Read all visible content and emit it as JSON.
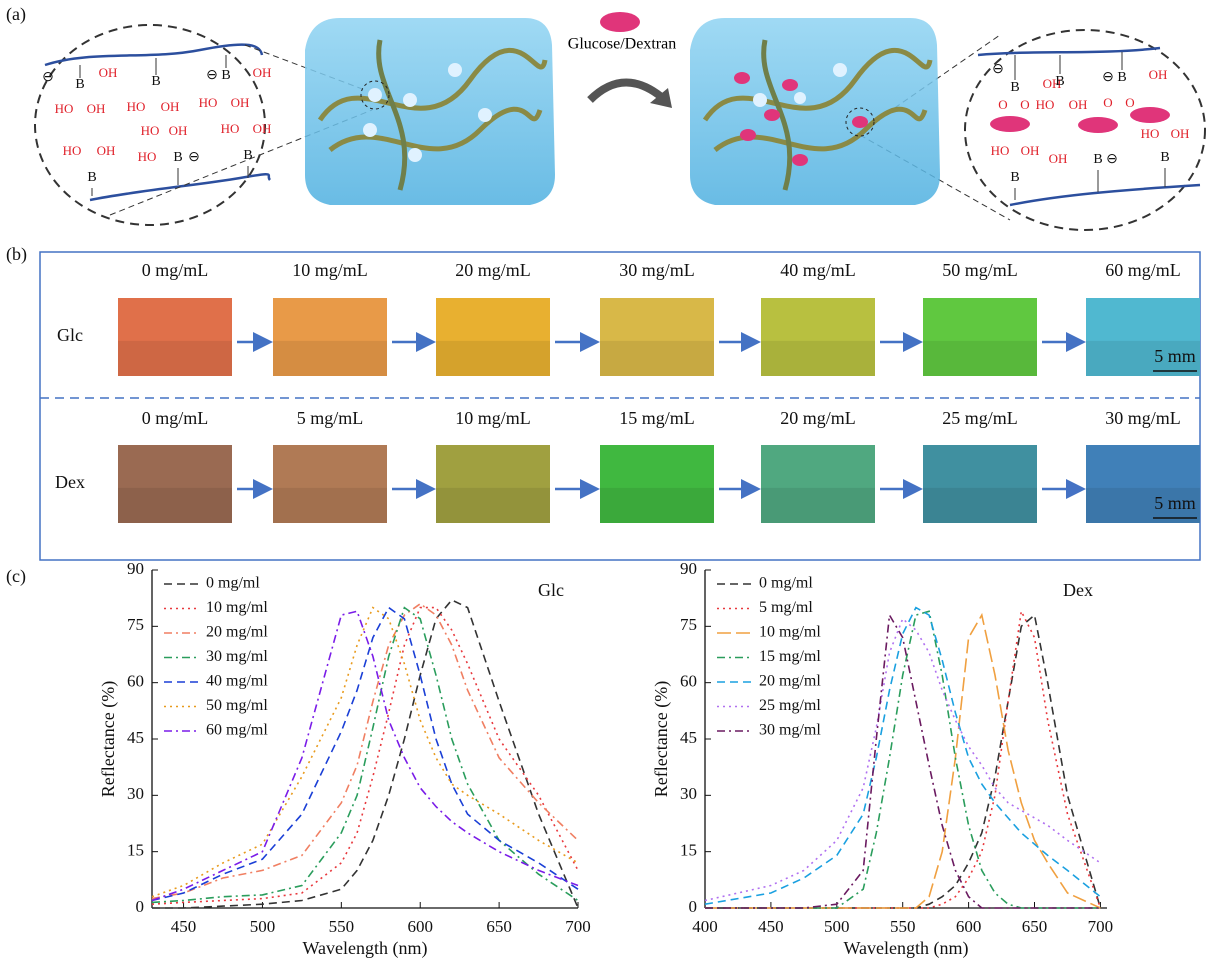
{
  "panel_labels": [
    "(a)",
    "(b)",
    "(c)"
  ],
  "schematic": {
    "analyte": "Glucose/Dextran",
    "left_labels": [
      "⊖",
      "B",
      "OH",
      "HO",
      "OH",
      "B",
      "HO",
      "OH",
      "⊖",
      "B",
      "OH",
      "HO",
      "OH",
      "HO",
      "OH",
      "B",
      "HO",
      "OH",
      "HO",
      "B",
      "⊖",
      "HO",
      "OH",
      "B"
    ],
    "right_labels": [
      "B",
      "OH",
      "O",
      "O",
      "⊖",
      "B",
      "HO",
      "OH",
      "⊖",
      "B",
      "OH",
      "O",
      "O",
      "HO",
      "OH",
      "B",
      "OH",
      "B",
      "⊖",
      "HO",
      "OH",
      "B"
    ]
  },
  "photos": {
    "rows": [
      {
        "name": "Glc",
        "labels": [
          "0 mg/mL",
          "10 mg/mL",
          "20 mg/mL",
          "30 mg/mL",
          "40 mg/mL",
          "50 mg/mL",
          "60 mg/mL"
        ],
        "scale_bar": "5 mm"
      },
      {
        "name": "Dex",
        "labels": [
          "0 mg/mL",
          "5 mg/mL",
          "10 mg/mL",
          "15 mg/mL",
          "20 mg/mL",
          "25 mg/mL",
          "30 mg/mL"
        ],
        "scale_bar": "5 mm"
      }
    ]
  },
  "chart_data": [
    {
      "type": "line",
      "annotation": "Glc",
      "x_label": "Wavelength (nm)",
      "y_label": "Reflectance (%)",
      "xlim": [
        430,
        700
      ],
      "ylim": [
        0,
        90
      ],
      "xticks": [
        450,
        500,
        550,
        600,
        650,
        700
      ],
      "yticks": [
        0,
        15,
        30,
        45,
        60,
        75,
        90
      ],
      "legend": "upper left",
      "grid": false,
      "x": [
        430,
        450,
        475,
        500,
        525,
        550,
        560,
        570,
        580,
        590,
        600,
        610,
        620,
        630,
        650,
        675,
        700
      ],
      "series": [
        {
          "name": "0 mg/ml",
          "color": "#333333",
          "linestyle": "dashed",
          "values": [
            0,
            0,
            0.5,
            1,
            2,
            5,
            10,
            18,
            30,
            45,
            62,
            77,
            82,
            80,
            55,
            25,
            0
          ]
        },
        {
          "name": "10 mg/ml",
          "color": "#e8383d",
          "linestyle": "dotted",
          "values": [
            1,
            1.5,
            2,
            2.5,
            4,
            12,
            20,
            35,
            52,
            70,
            80,
            80,
            74,
            65,
            45,
            30,
            10
          ]
        },
        {
          "name": "20 mg/ml",
          "color": "#f07f62",
          "linestyle": "dashdot",
          "values": [
            2.5,
            4,
            8,
            10,
            14,
            28,
            38,
            55,
            70,
            78,
            81,
            78,
            70,
            58,
            40,
            28,
            18
          ]
        },
        {
          "name": "30 mg/ml",
          "color": "#2a9d5c",
          "linestyle": "dashdot",
          "values": [
            1.5,
            2,
            3,
            3.5,
            6,
            20,
            30,
            48,
            67,
            80,
            77,
            62,
            45,
            33,
            18,
            9,
            2
          ]
        },
        {
          "name": "40 mg/ml",
          "color": "#1a3fd6",
          "linestyle": "dashed",
          "values": [
            2,
            4,
            9,
            13,
            25,
            47,
            58,
            72,
            80,
            77,
            62,
            45,
            33,
            25,
            18,
            12,
            5
          ]
        },
        {
          "name": "50 mg/ml",
          "color": "#e89a1c",
          "linestyle": "dotted",
          "values": [
            3,
            6,
            12,
            17,
            35,
            56,
            70,
            80,
            77,
            65,
            50,
            40,
            33,
            30,
            25,
            18,
            12
          ]
        },
        {
          "name": "60 mg/ml",
          "color": "#7a1ce8",
          "linestyle": "dashdot",
          "values": [
            2,
            5,
            10,
            15,
            40,
            78,
            79,
            67,
            50,
            40,
            32,
            27,
            23,
            20,
            15,
            10,
            6
          ]
        }
      ]
    },
    {
      "type": "line",
      "annotation": "Dex",
      "x_label": "Wavelength (nm)",
      "y_label": "Reflectance (%)",
      "xlim": [
        400,
        705
      ],
      "ylim": [
        0,
        90
      ],
      "xticks": [
        400,
        450,
        500,
        550,
        600,
        650,
        700
      ],
      "yticks": [
        0,
        15,
        30,
        45,
        60,
        75,
        90
      ],
      "legend": "upper left",
      "grid": false,
      "x": [
        400,
        450,
        475,
        500,
        520,
        530,
        540,
        550,
        560,
        570,
        580,
        590,
        600,
        610,
        620,
        630,
        640,
        650,
        660,
        675,
        700
      ],
      "series": [
        {
          "name": "0 mg/ml",
          "color": "#333333",
          "linestyle": "dashed",
          "values": [
            0,
            0,
            0,
            0,
            0,
            0,
            0,
            0,
            0,
            1,
            3,
            6,
            12,
            20,
            35,
            55,
            75,
            78,
            60,
            30,
            0
          ]
        },
        {
          "name": "5 mg/ml",
          "color": "#e8383d",
          "linestyle": "dotted",
          "values": [
            0,
            0,
            0,
            0,
            0,
            0,
            0,
            0,
            0,
            0,
            1,
            3,
            8,
            15,
            30,
            55,
            79,
            72,
            50,
            25,
            0
          ]
        },
        {
          "name": "10 mg/ml",
          "color": "#f0a040",
          "linestyle": "longdash",
          "values": [
            0,
            0,
            0,
            0,
            0,
            0,
            0,
            0,
            0,
            3,
            15,
            40,
            72,
            78,
            62,
            42,
            28,
            18,
            12,
            4,
            0
          ]
        },
        {
          "name": "15 mg/ml",
          "color": "#2a9d5c",
          "linestyle": "dashdot",
          "values": [
            0,
            0,
            0,
            0,
            5,
            20,
            40,
            62,
            78,
            79,
            62,
            40,
            22,
            10,
            4,
            1,
            0,
            0,
            0,
            0,
            0
          ]
        },
        {
          "name": "20 mg/ml",
          "color": "#1aa0e0",
          "linestyle": "dashed",
          "values": [
            1,
            4,
            8,
            14,
            25,
            40,
            58,
            73,
            80,
            78,
            66,
            52,
            40,
            33,
            28,
            24,
            20,
            17,
            14,
            10,
            3
          ]
        },
        {
          "name": "25 mg/ml",
          "color": "#b070f0",
          "linestyle": "dotted",
          "values": [
            2,
            6,
            10,
            18,
            32,
            48,
            68,
            77,
            74,
            68,
            58,
            50,
            43,
            38,
            32,
            28,
            26,
            24,
            22,
            18,
            12
          ]
        },
        {
          "name": "30 mg/ml",
          "color": "#6a1a60",
          "linestyle": "dashdot",
          "values": [
            0,
            0,
            0,
            1,
            10,
            45,
            78,
            72,
            55,
            38,
            22,
            10,
            3,
            0,
            0,
            0,
            0,
            0,
            0,
            0,
            0
          ]
        }
      ]
    }
  ]
}
